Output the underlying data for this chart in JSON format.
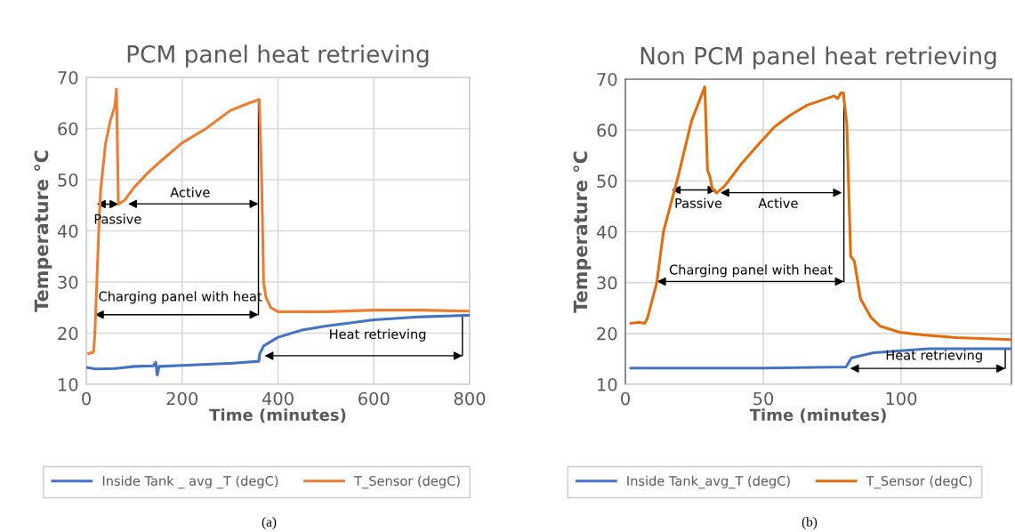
{
  "chart_data": [
    {
      "type": "line",
      "title": "PCM panel heat retrieving",
      "xlabel": "Time (minutes)",
      "ylabel": "Temperature °C",
      "xlim": [
        0,
        800
      ],
      "xticks": [
        0,
        200,
        400,
        600,
        800
      ],
      "ylim": [
        10,
        70
      ],
      "yticks": [
        10,
        20,
        30,
        40,
        50,
        60,
        70
      ],
      "grid": true,
      "legend": "bottom",
      "series": [
        {
          "name": "Inside Tank _ avg _T (degC)",
          "color": "#4472c4",
          "x": [
            0,
            20,
            60,
            100,
            140,
            145,
            148,
            152,
            200,
            300,
            360,
            362,
            370,
            400,
            450,
            500,
            600,
            700,
            800
          ],
          "values": [
            13.3,
            13.0,
            13.1,
            13.5,
            13.6,
            14.3,
            11.8,
            13.5,
            13.7,
            14.1,
            14.5,
            16.0,
            17.5,
            19.2,
            20.6,
            21.4,
            22.6,
            23.2,
            23.5
          ]
        },
        {
          "name": "T_Sensor (degC)",
          "color": "#ed7d31",
          "x": [
            5,
            15,
            18,
            22,
            26,
            30,
            40,
            50,
            60,
            63,
            67,
            80,
            100,
            130,
            160,
            200,
            250,
            300,
            340,
            361,
            366,
            370,
            375,
            385,
            400,
            500,
            600,
            700,
            800
          ],
          "values": [
            16,
            16.3,
            20,
            30,
            40,
            48,
            57,
            61.5,
            64.5,
            67.7,
            45.2,
            46,
            48.5,
            51.5,
            54,
            57.2,
            60,
            63.5,
            65,
            65.7,
            50,
            30,
            27,
            25,
            24.2,
            24.2,
            24.5,
            24.5,
            24.3
          ]
        }
      ],
      "annotations": [
        "Passive",
        "Active",
        "Charging panel with heat",
        "Heat retrieving",
        "(a)"
      ]
    },
    {
      "type": "line",
      "title": "Non PCM panel heat retrieving",
      "xlabel": "Time (minutes)",
      "ylabel": "Temperature °C",
      "xlim": [
        0,
        140
      ],
      "xticks": [
        0,
        50,
        100
      ],
      "ylim": [
        10,
        70
      ],
      "yticks": [
        10,
        20,
        30,
        40,
        50,
        60,
        70
      ],
      "grid": true,
      "legend": "bottom",
      "series": [
        {
          "name": "Inside Tank_avg_T (degC)",
          "color": "#4472c4",
          "x": [
            2,
            20,
            50,
            80,
            82,
            90,
            100,
            110,
            140
          ],
          "values": [
            13.2,
            13.2,
            13.2,
            13.4,
            15.2,
            16.2,
            16.6,
            17,
            17
          ]
        },
        {
          "name": "T_Sensor (degC)",
          "color": "#e46c0a",
          "x": [
            2,
            5,
            7,
            8,
            11.4,
            13.8,
            19.2,
            24,
            28.8,
            29.8,
            30.6,
            31.5,
            33,
            36,
            42,
            48,
            54,
            60,
            66,
            75.7,
            77,
            78.1,
            79,
            80.3,
            81.7,
            83,
            85.3,
            89,
            92.5,
            99.8,
            108,
            120,
            140
          ],
          "values": [
            22,
            22.2,
            22,
            23,
            30,
            40,
            51,
            61.8,
            68.5,
            52,
            51,
            48.5,
            47.6,
            49,
            53.3,
            57,
            60.6,
            63,
            64.9,
            66.7,
            66.2,
            67.3,
            67.3,
            61.2,
            35.2,
            34.3,
            26.8,
            23.2,
            21.4,
            20.2,
            19.7,
            19.2,
            18.8
          ]
        }
      ],
      "annotations": [
        "Passive",
        "Active",
        "Charging panel with heat",
        "Heat retrieving",
        "(b)"
      ]
    }
  ]
}
